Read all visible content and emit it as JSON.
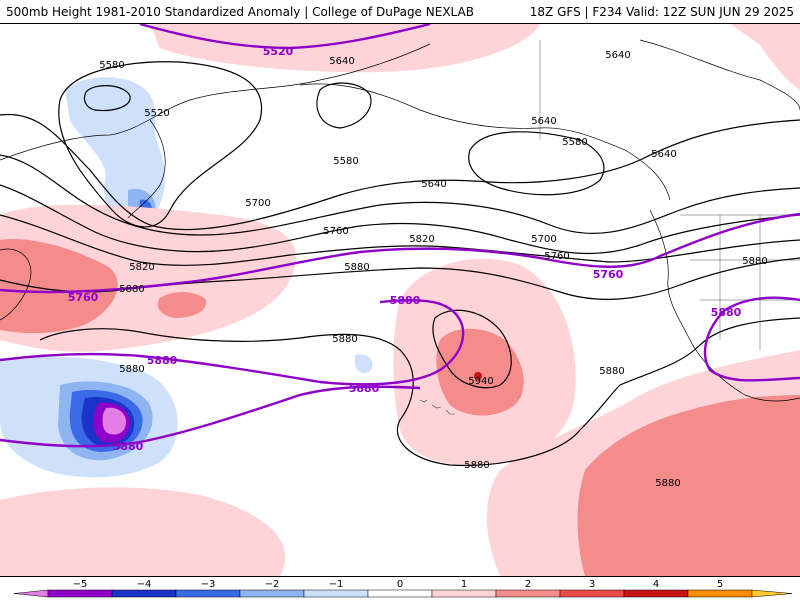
{
  "header": {
    "title_left": "500mb Height 1981-2010 Standardized Anomaly | College of DuPage NEXLAB",
    "title_right": "18Z GFS | F234 Valid: 12Z SUN JUN 29 2025"
  },
  "contours": {
    "black_labels": [
      "5520",
      "5580",
      "5580",
      "5580",
      "5640",
      "5640",
      "5640",
      "5640",
      "5640",
      "5700",
      "5700",
      "5760",
      "5760",
      "5820",
      "5820",
      "5880",
      "5880",
      "5880",
      "5880",
      "5880",
      "5880",
      "5880",
      "5880",
      "5940"
    ],
    "purple_labels": [
      "5520",
      "5760",
      "5760",
      "5880",
      "5880",
      "5880",
      "5880",
      "5880"
    ]
  },
  "colorbar": {
    "ticks": [
      "−5",
      "−4",
      "−3",
      "−2",
      "−1",
      "0",
      "1",
      "2",
      "3",
      "4",
      "5"
    ],
    "colors": [
      "#e57de6",
      "#8f00c8",
      "#1a33c8",
      "#3a6ae6",
      "#8fb4f2",
      "#cfe0fb",
      "#ffffff",
      "#ffd4d8",
      "#f58c8c",
      "#ea4a4a",
      "#c81414",
      "#ff8c00",
      "#ffc830"
    ]
  }
}
